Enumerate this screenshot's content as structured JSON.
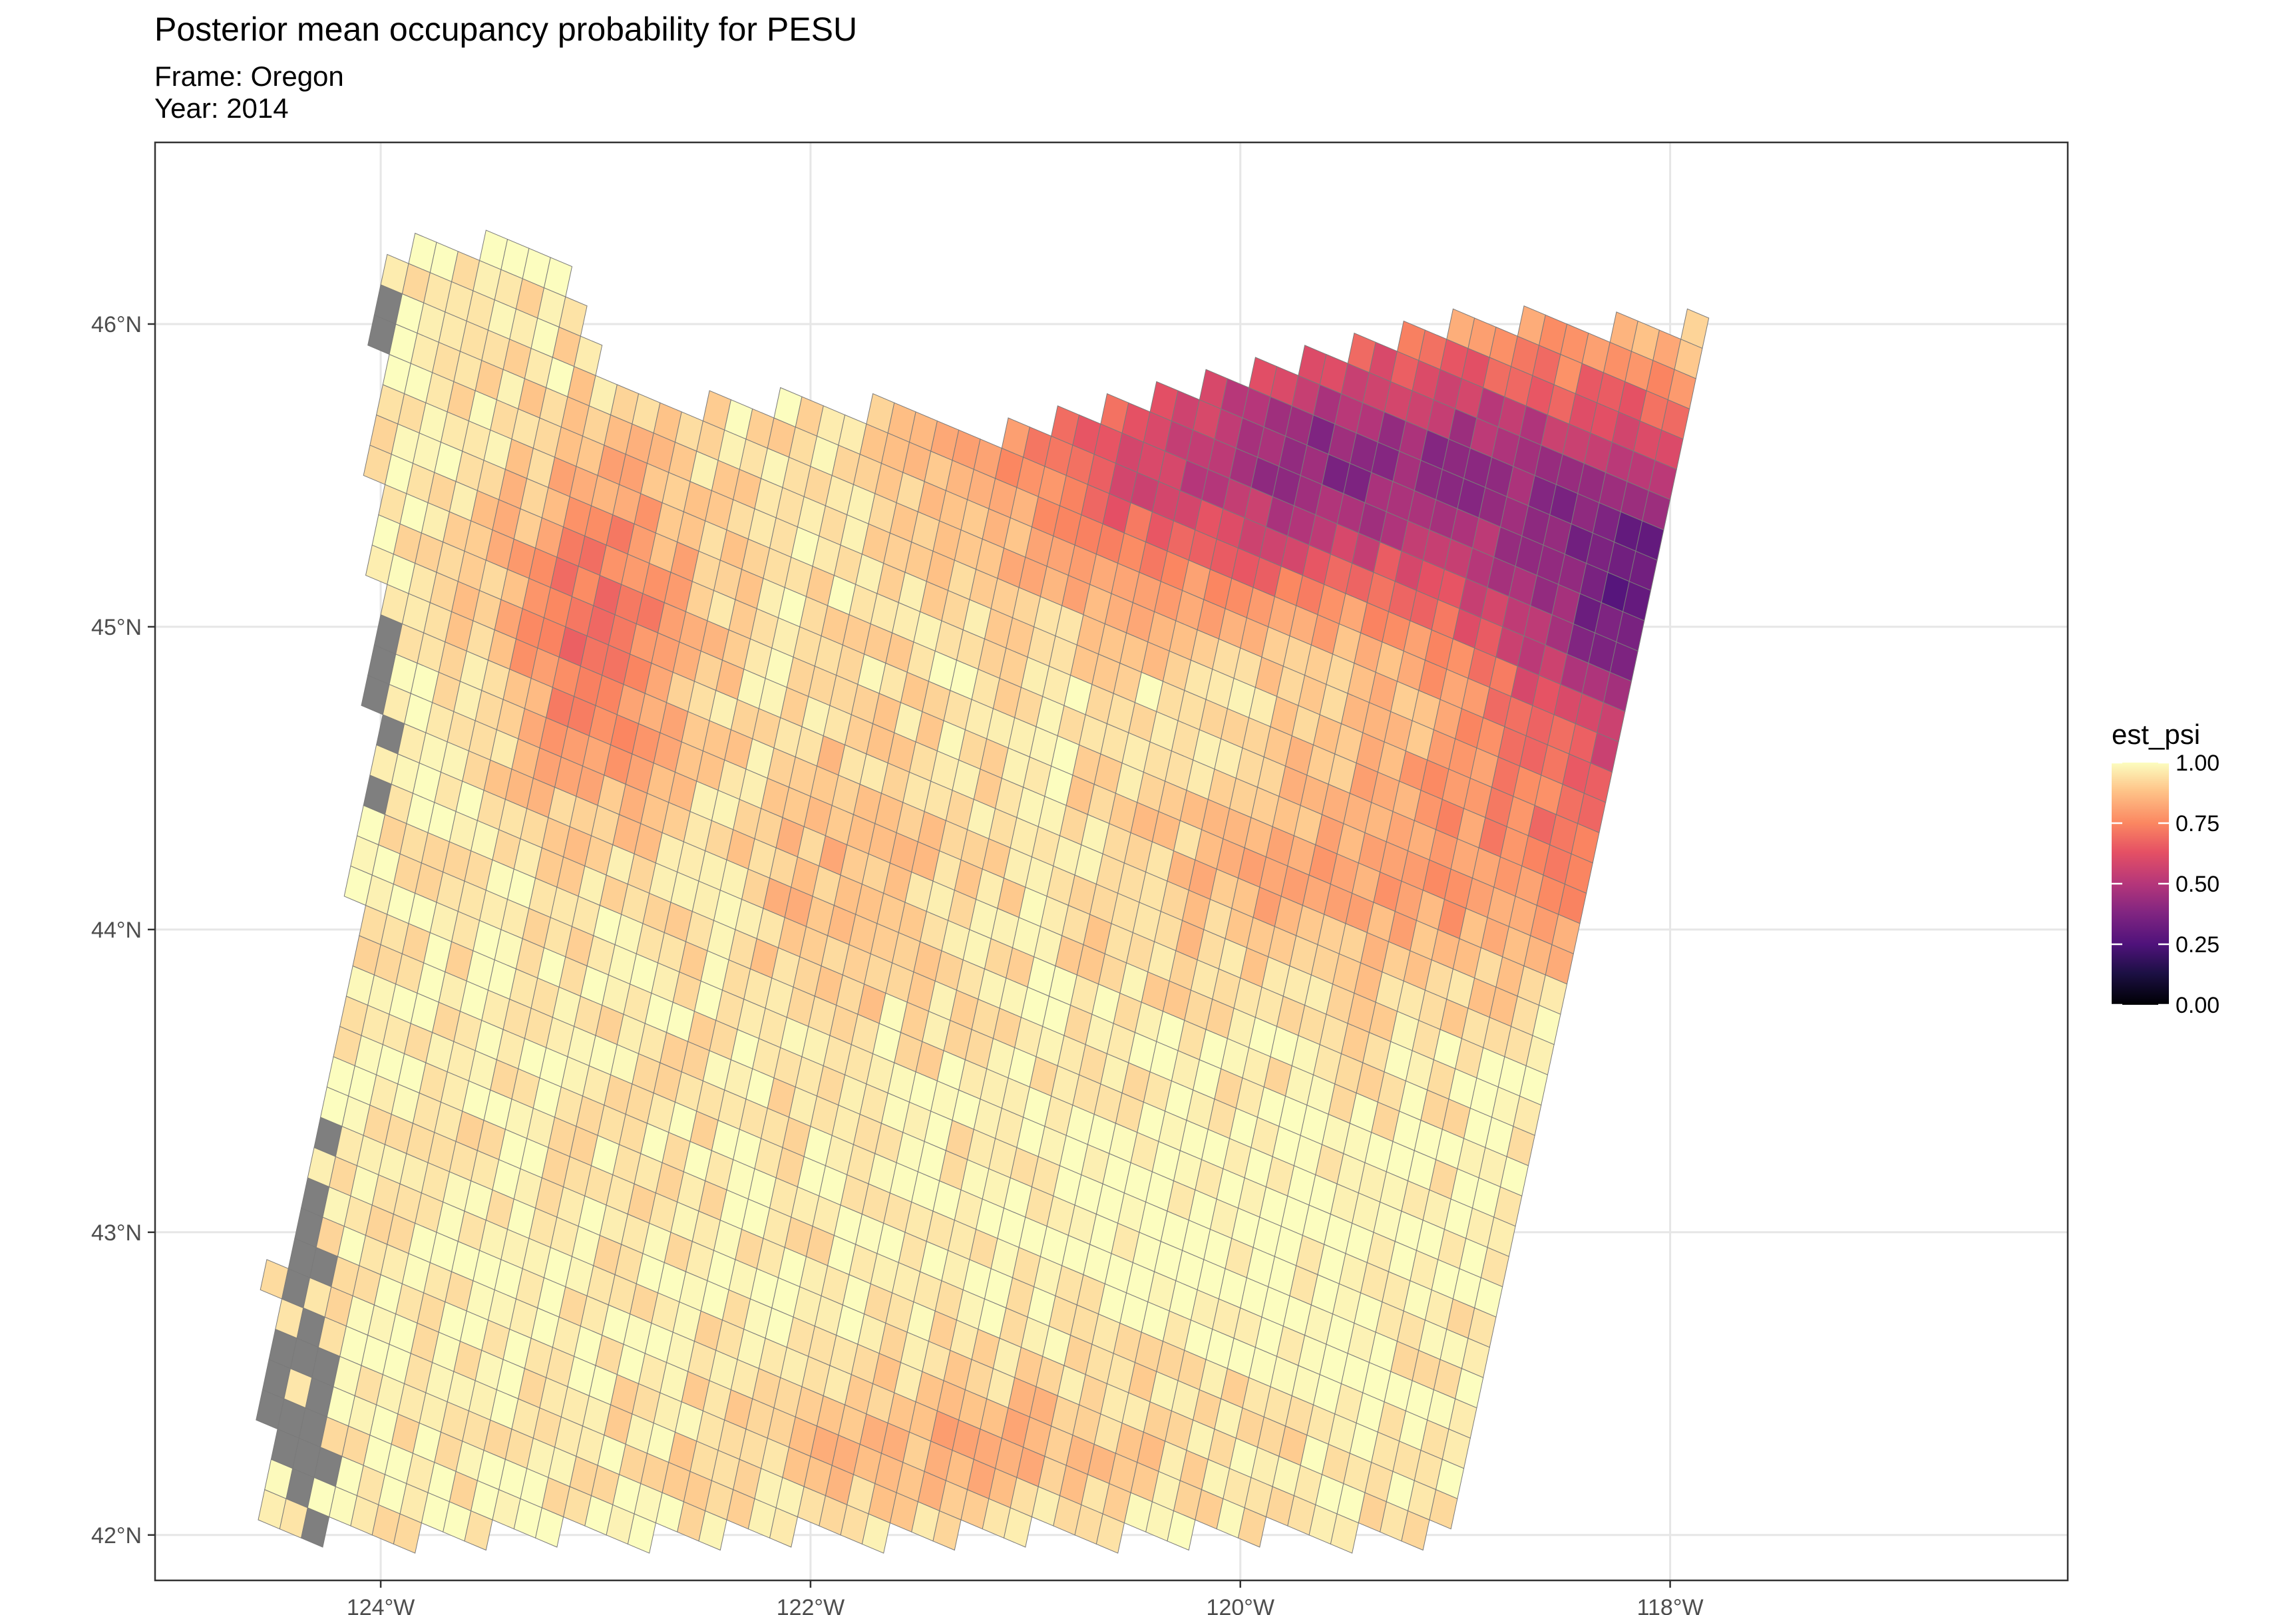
{
  "title": "Posterior mean occupancy probability for PESU",
  "subtitle_frame": "Frame: Oregon",
  "subtitle_year": "Year: 2014",
  "chart_data": {
    "type": "heatmap",
    "title": "Posterior mean occupancy probability for PESU",
    "xlabel": "",
    "ylabel": "",
    "x_ticks": [
      -124,
      -122,
      -120,
      -118
    ],
    "x_tick_labels": [
      "124°W",
      "122°W",
      "120°W",
      "118°W"
    ],
    "y_ticks": [
      42,
      43,
      44,
      45,
      46
    ],
    "y_tick_labels": [
      "42°N",
      "43°N",
      "44°N",
      "45°N",
      "46°N"
    ],
    "xlim": [
      -125.05,
      -116.15
    ],
    "ylim": [
      41.85,
      46.6
    ],
    "grid": true,
    "cell_size_deg": 0.1,
    "missing_color": "#7f7f7f",
    "legend": {
      "title": "est_psi",
      "position": "right",
      "scale": "magma",
      "range": [
        0,
        1
      ],
      "tick_values": [
        0,
        0.25,
        0.5,
        0.75,
        1
      ],
      "tick_labels": [
        "0.00",
        "0.25",
        "0.50",
        "0.75",
        "1.00"
      ]
    },
    "grid_cells": "Raster of ~2,800 grid cells covering Oregon; est_psi ranges 0.0–1.0, highest (~0.9–1.0) along the coast and southwest, mid values (~0.6–0.8) in the central band, lowest (~0.05–0.35) in the northeast (Columbia Plateau / Blue Mountains), with a cluster of missing (grey) cells along the western coastal edge."
  }
}
